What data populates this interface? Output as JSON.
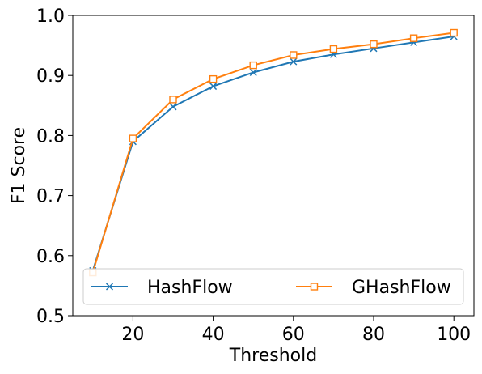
{
  "chart_data": {
    "type": "line",
    "xlabel": "Threshold",
    "ylabel": "F1 Score",
    "xlim": [
      5,
      105
    ],
    "ylim": [
      0.5,
      1.0
    ],
    "xticks": [
      20,
      40,
      60,
      80,
      100
    ],
    "yticks": [
      0.5,
      0.6,
      0.7,
      0.8,
      0.9,
      1.0
    ],
    "xtick_labels": [
      "20",
      "40",
      "60",
      "80",
      "100"
    ],
    "ytick_labels": [
      "0.5",
      "0.6",
      "0.7",
      "0.8",
      "0.9",
      "1.0"
    ],
    "grid": false,
    "legend_position": "lower-center",
    "x": [
      10,
      20,
      30,
      40,
      50,
      60,
      70,
      80,
      90,
      100
    ],
    "series": [
      {
        "name": "HashFlow",
        "color": "#1f77b4",
        "marker": "x",
        "values": [
          0.575,
          0.79,
          0.848,
          0.882,
          0.905,
          0.923,
          0.935,
          0.945,
          0.955,
          0.965
        ]
      },
      {
        "name": "GHashFlow",
        "color": "#ff7f0e",
        "marker": "square",
        "values": [
          0.572,
          0.795,
          0.86,
          0.894,
          0.917,
          0.934,
          0.944,
          0.952,
          0.962,
          0.971
        ]
      }
    ]
  }
}
